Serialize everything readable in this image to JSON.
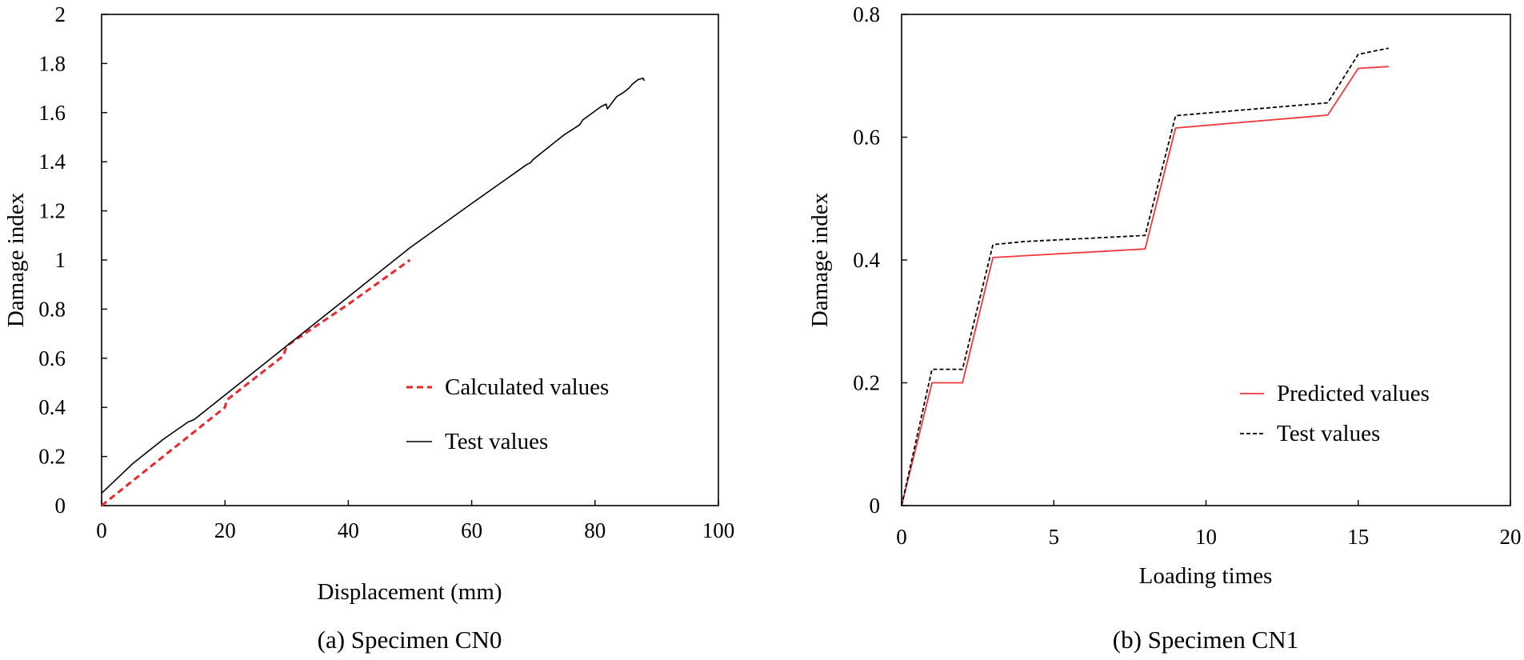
{
  "chart_data": [
    {
      "id": "a",
      "type": "line",
      "caption": "(a) Specimen CN0",
      "xlabel": "Displacement (mm)",
      "ylabel": "Damage index",
      "xlim": [
        0,
        100
      ],
      "ylim": [
        0,
        2
      ],
      "xticks": [
        0,
        20,
        40,
        60,
        80,
        100
      ],
      "yticks": [
        0,
        0.2,
        0.4,
        0.6,
        0.8,
        1,
        1.2,
        1.4,
        1.6,
        1.8,
        2
      ],
      "xtick_labels": [
        "0",
        "20",
        "40",
        "60",
        "80",
        "100"
      ],
      "ytick_labels": [
        "0",
        "0.2",
        "0.4",
        "0.6",
        "0.8",
        "1",
        "1.2",
        "1.4",
        "1.6",
        "1.8",
        "2"
      ],
      "grid": false,
      "legend_position": "right-middle",
      "series": [
        {
          "name": "Calculated values",
          "style": "dashed",
          "color": "#e8272a",
          "x": [
            0,
            10,
            20,
            20.3,
            29.5,
            30,
            40,
            50
          ],
          "y": [
            0,
            0.2,
            0.4,
            0.43,
            0.61,
            0.65,
            0.82,
            1.0
          ]
        },
        {
          "name": "Test values",
          "style": "solid",
          "color": "#000000",
          "x": [
            0,
            5,
            10,
            14,
            15,
            20,
            25,
            30,
            35,
            40,
            50,
            60,
            69,
            69.5,
            70,
            75,
            77.5,
            78,
            81,
            81.8,
            82,
            83.5,
            84.5,
            85.5,
            86,
            87,
            87.8,
            88
          ],
          "y": [
            0.05,
            0.17,
            0.27,
            0.34,
            0.35,
            0.45,
            0.55,
            0.65,
            0.75,
            0.85,
            1.05,
            1.23,
            1.39,
            1.395,
            1.41,
            1.51,
            1.55,
            1.57,
            1.625,
            1.635,
            1.615,
            1.665,
            1.68,
            1.7,
            1.715,
            1.735,
            1.74,
            1.73
          ]
        }
      ]
    },
    {
      "id": "b",
      "type": "line",
      "caption": "(b) Specimen CN1",
      "xlabel": "Loading times",
      "ylabel": "Damage index",
      "xlim": [
        0,
        20
      ],
      "ylim": [
        0,
        0.8
      ],
      "xticks": [
        0,
        5,
        10,
        15,
        20
      ],
      "yticks": [
        0,
        0.2,
        0.4,
        0.6,
        0.8
      ],
      "xtick_labels": [
        "0",
        "5",
        "10",
        "15",
        "20"
      ],
      "ytick_labels": [
        "0",
        "0.2",
        "0.4",
        "0.6",
        "0.8"
      ],
      "grid": false,
      "legend_position": "bottom-right",
      "series": [
        {
          "name": "Predicted values",
          "style": "solid",
          "color": "#f0373b",
          "x": [
            0,
            1,
            2,
            3,
            8,
            9,
            14,
            15,
            16
          ],
          "y": [
            0,
            0.2,
            0.2,
            0.404,
            0.418,
            0.615,
            0.636,
            0.712,
            0.715
          ]
        },
        {
          "name": "Test values",
          "style": "dashed",
          "color": "#000000",
          "x": [
            0,
            1,
            2,
            3,
            4,
            8,
            9,
            14,
            15,
            16
          ],
          "y": [
            0,
            0.222,
            0.222,
            0.425,
            0.43,
            0.44,
            0.635,
            0.656,
            0.735,
            0.745
          ]
        }
      ]
    }
  ]
}
